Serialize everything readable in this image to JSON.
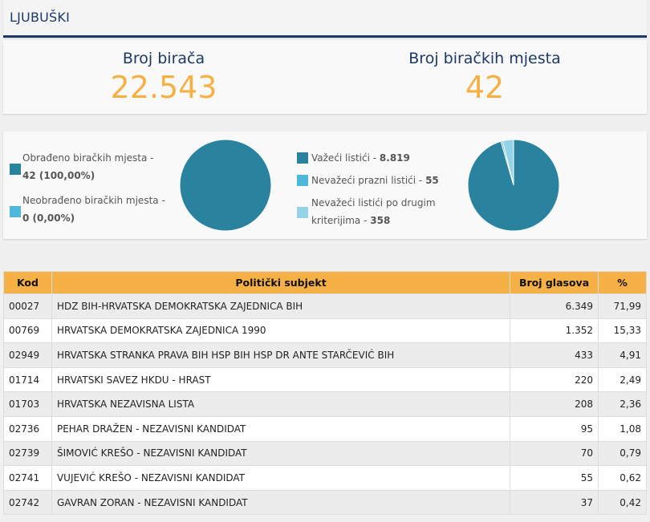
{
  "header": {
    "title": "LJUBUŠKI"
  },
  "stats": {
    "voters_label": "Broj birača",
    "voters_value": "22.543",
    "stations_label": "Broj biračkih mjesta",
    "stations_value": "42"
  },
  "colors": {
    "accent": "#f6b146",
    "navy": "#1c3966",
    "teal_dark": "#2a839e",
    "teal_light": "#4db8d9",
    "teal_pale": "#94d3e8"
  },
  "legend_left": [
    {
      "line1": "Obrađeno biračkih mjesta -",
      "value": "42 (100,00%)"
    },
    {
      "line1": "Neobrađeno biračkih mjesta -",
      "value": "0 (0,00%)"
    }
  ],
  "legend_right": [
    {
      "label": "Važeći listići - ",
      "value": "8.819"
    },
    {
      "label": "Nevažeći prazni listići - ",
      "value": "55"
    },
    {
      "line1": "Nevažeći listići po drugim",
      "label2": "kriterijima - ",
      "value": "358"
    }
  ],
  "chart_data": [
    {
      "type": "pie",
      "categories": [
        "Obrađeno biračkih mjesta",
        "Neobrađeno biračkih mjesta"
      ],
      "values": [
        42,
        0
      ]
    },
    {
      "type": "pie",
      "categories": [
        "Važeći listići",
        "Nevažeći prazni listići",
        "Nevažeći listići po drugim kriterijima"
      ],
      "values": [
        8819,
        55,
        358
      ]
    }
  ],
  "table": {
    "headers": [
      "Kod",
      "Politički subjekt",
      "Broj glasova",
      "%"
    ],
    "rows": [
      [
        "00027",
        "HDZ BIH-HRVATSKA DEMOKRATSKA ZAJEDNICA BIH",
        "6.349",
        "71,99"
      ],
      [
        "00769",
        "HRVATSKA DEMOKRATSKA ZAJEDNICA 1990",
        "1.352",
        "15,33"
      ],
      [
        "02949",
        "HRVATSKA STRANKA PRAVA BIH HSP BIH HSP DR ANTE STARČEVIĆ BIH",
        "433",
        "4,91"
      ],
      [
        "01714",
        "HRVATSKI SAVEZ HKDU - HRAST",
        "220",
        "2,49"
      ],
      [
        "01703",
        "HRVATSKA NEZAVISNA LISTA",
        "208",
        "2,36"
      ],
      [
        "02736",
        "PEHAR DRAŽEN - NEZAVISNI KANDIDAT",
        "95",
        "1,08"
      ],
      [
        "02739",
        "ŠIMOVIĆ KREŠO - NEZAVISNI KANDIDAT",
        "70",
        "0,79"
      ],
      [
        "02741",
        "VUJEVIĆ KREŠO - NEZAVISNI KANDIDAT",
        "55",
        "0,62"
      ],
      [
        "02742",
        "GAVRAN ZORAN - NEZAVISNI KANDIDAT",
        "37",
        "0,42"
      ]
    ]
  }
}
